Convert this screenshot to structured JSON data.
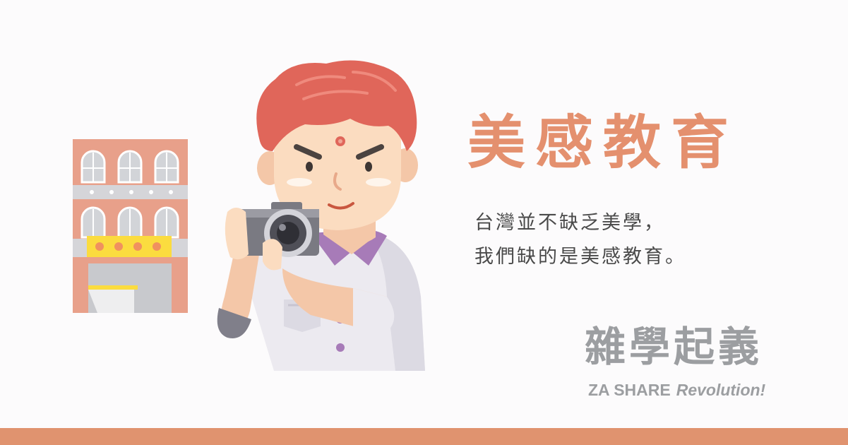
{
  "headline": "美感教育",
  "subtitle": {
    "line1": "台灣並不缺乏美學，",
    "line2": "我們缺的是美感教育。"
  },
  "brand": {
    "name_cn": "雜學起義",
    "name_en_1": "ZA SHARE",
    "name_en_2": "Revolution!"
  },
  "colors": {
    "accent": "#e4906e",
    "bar": "#e0936f",
    "brand_gray": "#9c9ea1",
    "hair": "#e0665a",
    "skin": "#fbdcc0",
    "shirt": "#eceaf0",
    "collar": "#a77bb8",
    "building": "#e8a08a"
  },
  "illustration": {
    "subject": "man-with-camera",
    "side_element": "building"
  }
}
